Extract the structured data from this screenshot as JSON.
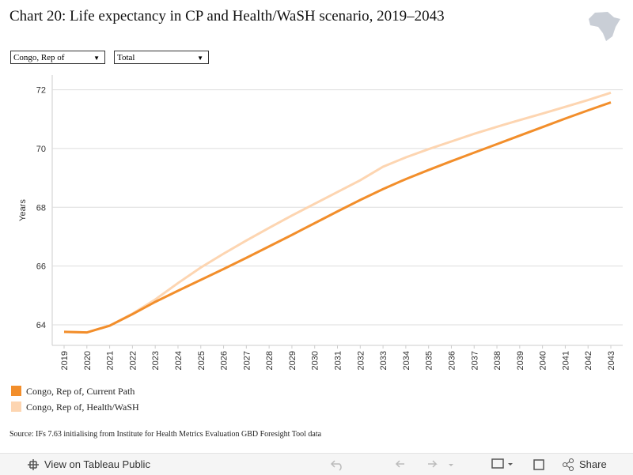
{
  "chart_data": {
    "type": "line",
    "title": "Chart 20: Life expectancy in CP and Health/WaSH scenario, 2019–2043",
    "filters": [
      "Congo, Rep of",
      "Total"
    ],
    "y_label": "Years",
    "x": [
      2019,
      2020,
      2021,
      2022,
      2023,
      2024,
      2025,
      2026,
      2027,
      2028,
      2029,
      2030,
      2031,
      2032,
      2033,
      2034,
      2035,
      2036,
      2037,
      2038,
      2039,
      2040,
      2041,
      2042,
      2043
    ],
    "series": [
      {
        "name": "Congo, Rep of, Current Path",
        "color": "#f28e2b",
        "values": [
          63.76,
          63.74,
          63.97,
          64.36,
          64.78,
          65.16,
          65.53,
          65.9,
          66.28,
          66.67,
          67.06,
          67.46,
          67.86,
          68.25,
          68.62,
          68.96,
          69.27,
          69.57,
          69.86,
          70.15,
          70.44,
          70.73,
          71.02,
          71.3,
          71.57
        ]
      },
      {
        "name": "Congo, Rep of, Health/WaSH",
        "color": "#fdd5b1",
        "values": [
          63.76,
          63.74,
          63.97,
          64.38,
          64.86,
          65.42,
          65.95,
          66.42,
          66.87,
          67.3,
          67.72,
          68.12,
          68.52,
          68.92,
          69.38,
          69.7,
          69.98,
          70.24,
          70.5,
          70.74,
          70.97,
          71.19,
          71.42,
          71.65,
          71.9
        ]
      }
    ],
    "ylim": [
      63.3,
      72.5
    ],
    "yticks": [
      64,
      66,
      68,
      70,
      72
    ],
    "grid": true,
    "source": "Source: IFs 7.63 initialising from Institute for Health Metrics Evaluation GBD Foresight Tool data",
    "toolbar": [
      "View on Tableau Public",
      "Share"
    ]
  }
}
